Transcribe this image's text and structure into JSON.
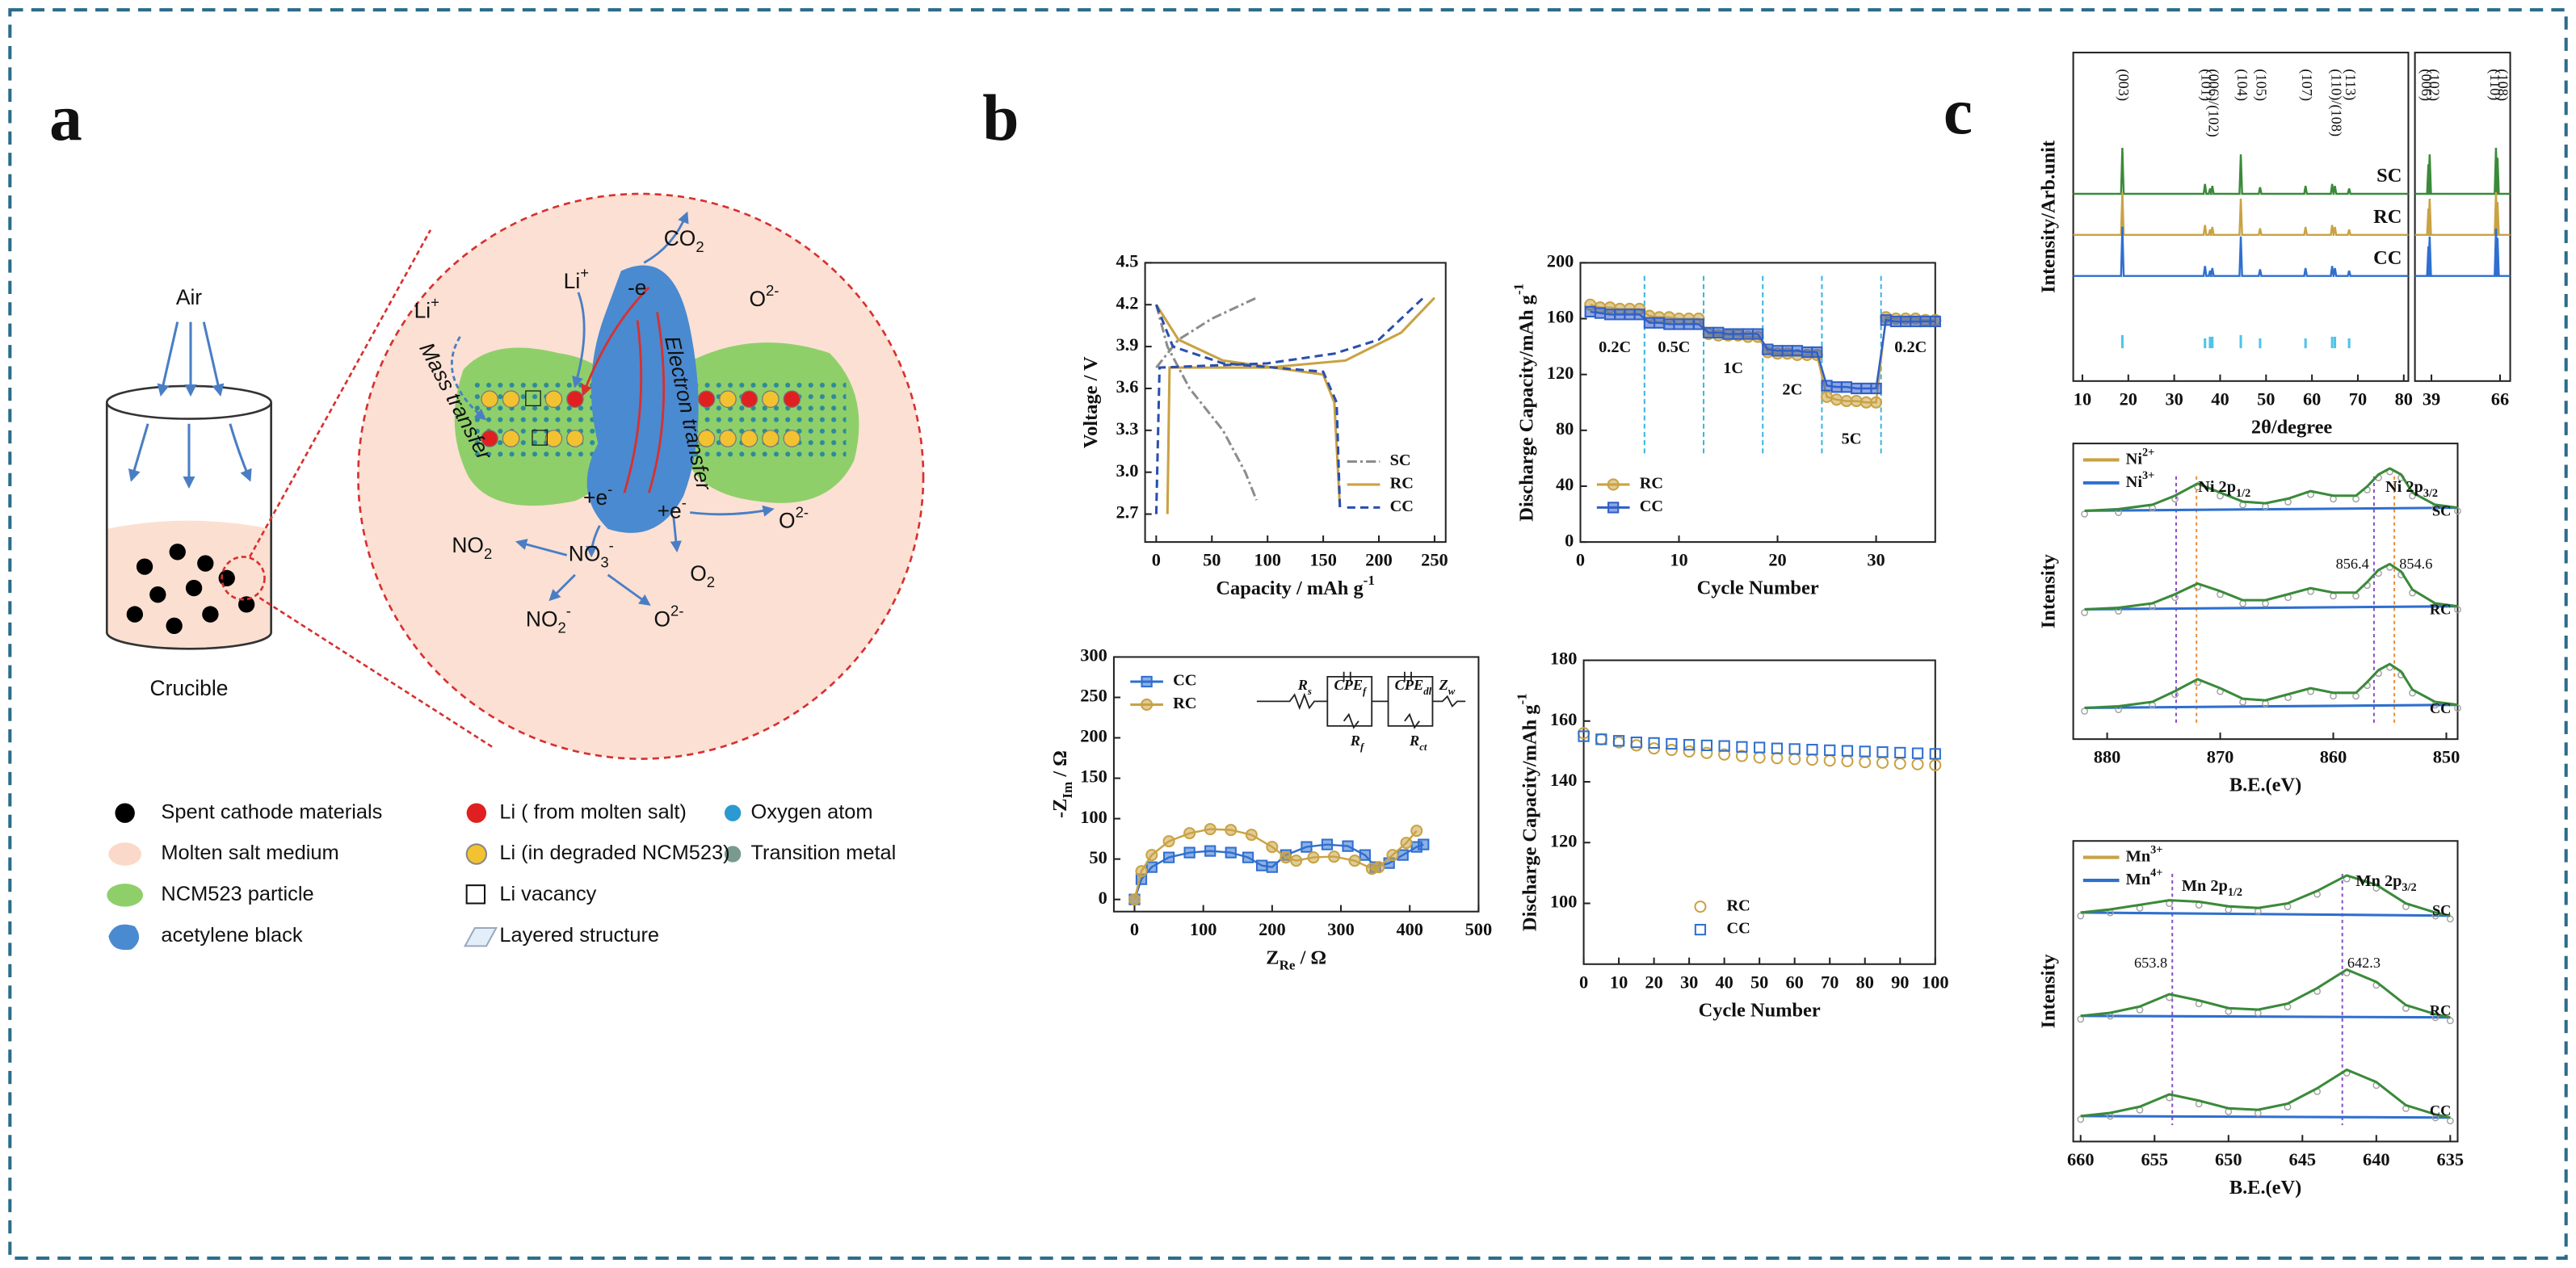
{
  "panels": {
    "a": "a",
    "b": "b",
    "c": "c"
  },
  "diagram": {
    "air": "Air",
    "crucible": "Crucible",
    "li_plus_1": {
      "text": "Li",
      "sup": "+"
    },
    "li_plus_2": {
      "text": "Li",
      "sup": "+"
    },
    "co2": {
      "text": "CO",
      "sub": "2"
    },
    "o2m_1": {
      "text": "O",
      "sup": "2-"
    },
    "mass_transfer": "Mass transfer",
    "electron_transfer": "Electron transfer",
    "minus_e": "-e",
    "plus_e_1": {
      "text": "+e",
      "sup": "-"
    },
    "plus_e_2": {
      "text": "+e",
      "sup": "-"
    },
    "no2": {
      "text": "NO",
      "sub": "2"
    },
    "no3": {
      "text": "NO",
      "sub": "3",
      "sup": "-"
    },
    "no2m": {
      "text": "NO",
      "sub": "2",
      "sup": "-"
    },
    "o2m_2": {
      "text": "O",
      "sup": "2-"
    },
    "o2": {
      "text": "O",
      "sub": "2"
    },
    "o2m_3": {
      "text": "O",
      "sup": "2-"
    }
  },
  "legend_a": [
    "Spent cathode materials",
    "Molten salt medium",
    "NCM523 particle",
    "acetylene black",
    "Li ( from molten salt)",
    "Li (in degraded NCM523)",
    "Li vacancy",
    "Layered structure",
    "Oxygen atom",
    "Transition metal"
  ],
  "chart_data": [
    {
      "type": "line",
      "xlabel": {
        "text": "Capacity / mAh g",
        "sup": "-1"
      },
      "ylabel": "Voltage / V",
      "xlim": [
        -10,
        260
      ],
      "xticks": [
        0,
        50,
        100,
        150,
        200,
        250
      ],
      "ylim": [
        2.5,
        4.5
      ],
      "yticks": [
        2.7,
        {
          "value": 3,
          "label": "3.0"
        },
        3.3,
        3.6,
        3.9,
        4.2,
        4.5
      ],
      "legend": "lower right",
      "series": [
        {
          "name": "SC",
          "color": "#8c8c8c",
          "dash": "dashdot",
          "x": [
            0,
            20,
            50,
            90,
            null,
            0,
            10,
            30,
            60,
            80,
            90
          ],
          "values": [
            3.75,
            3.95,
            4.1,
            4.25,
            null,
            4.2,
            3.9,
            3.6,
            3.3,
            3.0,
            2.8
          ]
        },
        {
          "name": "RC",
          "color": "#c9a243",
          "dash": "solid",
          "x": [
            10,
            12,
            100,
            170,
            220,
            250,
            null,
            0,
            20,
            60,
            150,
            160,
            165
          ],
          "values": [
            2.7,
            3.75,
            3.75,
            3.8,
            4.0,
            4.25,
            null,
            4.2,
            3.95,
            3.8,
            3.7,
            3.5,
            2.75
          ]
        },
        {
          "name": "CC",
          "color": "#2a4fb0",
          "dash": "dashed",
          "x": [
            0,
            3,
            100,
            160,
            200,
            240,
            null,
            0,
            15,
            60,
            150,
            162,
            165
          ],
          "values": [
            2.7,
            3.75,
            3.78,
            3.85,
            3.95,
            4.25,
            null,
            4.2,
            3.9,
            3.78,
            3.72,
            3.5,
            2.75
          ]
        }
      ]
    },
    {
      "type": "scatter",
      "xlabel": "Cycle Number",
      "ylabel": {
        "text": "Discharge Capacity/mAh g",
        "sup": "-1"
      },
      "xlim": [
        0,
        36
      ],
      "xticks": [
        0,
        10,
        20,
        30
      ],
      "ylim": [
        0,
        200
      ],
      "yticks": [
        0,
        40,
        80,
        120,
        160,
        200
      ],
      "legend": "lower left",
      "connect": true,
      "dividers": [
        6.5,
        12.5,
        18.5,
        24.5,
        30.5
      ],
      "divider_color": "#3bb5e0",
      "annotations": [
        "0.2C",
        "0.5C",
        "1C",
        "2C",
        "5C",
        "0.2C"
      ],
      "x": [
        1,
        2,
        3,
        4,
        5,
        6,
        7,
        8,
        9,
        10,
        11,
        12,
        13,
        14,
        15,
        16,
        17,
        18,
        19,
        20,
        21,
        22,
        23,
        24,
        25,
        26,
        27,
        28,
        29,
        30,
        31,
        32,
        33,
        34,
        35,
        36
      ],
      "series": [
        {
          "name": "RC",
          "color": "#c9a243",
          "marker": "circle",
          "values": [
            170,
            168,
            168,
            167,
            167,
            167,
            162,
            161,
            161,
            160,
            160,
            160,
            149,
            148,
            148,
            148,
            147,
            147,
            136,
            135,
            135,
            134,
            134,
            134,
            104,
            102,
            101,
            101,
            100,
            100,
            161,
            160,
            160,
            160,
            159,
            159
          ]
        },
        {
          "name": "CC",
          "color": "#2f5fc8",
          "marker": "square",
          "values": [
            165,
            164,
            163,
            163,
            163,
            163,
            157,
            157,
            156,
            156,
            156,
            156,
            150,
            150,
            149,
            149,
            149,
            149,
            138,
            137,
            137,
            137,
            136,
            136,
            112,
            111,
            111,
            110,
            110,
            110,
            159,
            158,
            158,
            158,
            158,
            158
          ]
        }
      ]
    },
    {
      "type": "scatter",
      "xlabel": {
        "text": "Z",
        "sub": "Re",
        "rest": " / Ω"
      },
      "ylabel": {
        "text": "-Z",
        "sub": "Im",
        "rest": " / Ω"
      },
      "xlim": [
        -30,
        500
      ],
      "xticks": [
        0,
        100,
        200,
        300,
        400,
        500
      ],
      "ylim": [
        -15,
        300
      ],
      "yticks": [
        0,
        50,
        100,
        150,
        200,
        250,
        300
      ],
      "legend": "upper left",
      "connect": true,
      "circuit": [
        {
          "text": "R",
          "sub": "s"
        },
        {
          "text": "CPE",
          "sub": "f"
        },
        {
          "text": "CPE",
          "sub": "dl"
        },
        {
          "text": "Z",
          "sub": "w"
        },
        {
          "text": "R",
          "sub": "f"
        },
        {
          "text": "R",
          "sub": "ct"
        }
      ],
      "series": [
        {
          "name": "CC",
          "color": "#2f6fcf",
          "marker": "square",
          "x": [
            0,
            10,
            25,
            50,
            80,
            110,
            140,
            165,
            185,
            200,
            220,
            250,
            280,
            310,
            335,
            350,
            370,
            390,
            410,
            420
          ],
          "values": [
            0,
            25,
            40,
            52,
            58,
            60,
            58,
            52,
            42,
            40,
            55,
            65,
            68,
            66,
            55,
            40,
            45,
            55,
            65,
            68
          ]
        },
        {
          "name": "RC",
          "color": "#c9a243",
          "marker": "circle",
          "x": [
            0,
            10,
            25,
            50,
            80,
            110,
            140,
            170,
            200,
            220,
            235,
            260,
            290,
            320,
            345,
            355,
            375,
            395,
            410
          ],
          "values": [
            0,
            35,
            55,
            72,
            82,
            87,
            86,
            80,
            65,
            52,
            48,
            52,
            53,
            48,
            38,
            40,
            55,
            70,
            85
          ]
        }
      ]
    },
    {
      "type": "scatter",
      "xlabel": "Cycle Number",
      "ylabel": {
        "text": "Discharge Capacity/mAh g",
        "sup": "-1"
      },
      "xlim": [
        0,
        100
      ],
      "xticks": [
        0,
        10,
        20,
        30,
        40,
        50,
        60,
        70,
        80,
        90,
        100
      ],
      "ylim": [
        80,
        180
      ],
      "yticks": [
        100,
        120,
        140,
        160,
        180
      ],
      "legend": "lower center",
      "connect": false,
      "marker_fill": "none",
      "x": [
        0,
        5,
        10,
        15,
        20,
        25,
        30,
        35,
        40,
        45,
        50,
        55,
        60,
        65,
        70,
        75,
        80,
        85,
        90,
        95,
        100
      ],
      "series": [
        {
          "name": "RC",
          "color": "#c9a243",
          "marker": "circle",
          "values": [
            156,
            154,
            153,
            152,
            151,
            150.5,
            150,
            149.5,
            149,
            148.5,
            148,
            147.8,
            147.5,
            147.3,
            147,
            146.8,
            146.5,
            146.3,
            146,
            145.8,
            145.5
          ]
        },
        {
          "name": "CC",
          "color": "#2f6fcf",
          "marker": "square",
          "values": [
            155,
            154,
            153.5,
            153,
            152.8,
            152.5,
            152.2,
            152,
            151.8,
            151.5,
            151.3,
            151,
            150.8,
            150.6,
            150.4,
            150.2,
            150,
            149.8,
            149.6,
            149.4,
            149.2
          ]
        }
      ]
    },
    {
      "type": "xrd",
      "xlabel": "2θ/degree",
      "ylabel": "Intensity/Arb.unit",
      "xlim": [
        8,
        81
      ],
      "xticks": [
        10,
        20,
        30,
        40,
        50,
        60,
        70,
        80
      ],
      "x": [
        18.7,
        36.7,
        37.8,
        38.3,
        44.5,
        48.7,
        58.6,
        64.4,
        65.0,
        68.1
      ],
      "series": [
        {
          "name": "SC",
          "color": "#3a8a3a",
          "values": [
            70,
            15,
            8,
            12,
            60,
            10,
            12,
            15,
            12,
            8
          ]
        },
        {
          "name": "RC",
          "color": "#c9a243",
          "values": [
            65,
            15,
            8,
            12,
            55,
            10,
            12,
            15,
            12,
            8
          ]
        },
        {
          "name": "CC",
          "color": "#2f6fcf",
          "values": [
            75,
            15,
            8,
            12,
            60,
            10,
            12,
            15,
            12,
            8
          ]
        }
      ],
      "reference": {
        "color": "#4fc3e8",
        "values": [
          40,
          30,
          35,
          35,
          40,
          30,
          30,
          35,
          35,
          30
        ]
      },
      "peak_labels": [
        "(003)",
        "(101)",
        "(006)/(102)",
        "(104)",
        "(105)",
        "(107)",
        "(110)/(108)",
        "(113)"
      ],
      "peak_label_x": [
        18.7,
        36.7,
        38.3,
        44.5,
        48.7,
        58.6,
        65.0,
        68.1
      ]
    },
    {
      "type": "xrd",
      "xlim": [
        32.5,
        70
      ],
      "xticks": [
        39,
        66
      ],
      "x": [
        37.8,
        38.3,
        64.4,
        65.0
      ],
      "series": [
        {
          "color": "#3a8a3a",
          "values": [
            45,
            60,
            70,
            55
          ]
        },
        {
          "color": "#c9a243",
          "values": [
            40,
            55,
            65,
            50
          ]
        },
        {
          "color": "#2f6fcf",
          "values": [
            45,
            60,
            72,
            58
          ]
        }
      ],
      "peak_labels": [
        "(006)",
        "(102)",
        "(110)",
        "(108)"
      ],
      "peak_label_x": [
        36.5,
        39.5,
        63.5,
        66.5
      ]
    },
    {
      "type": "xps",
      "xlabel": "B.E.(eV)",
      "ylabel": "Intensity",
      "xlim": [
        883,
        849
      ],
      "xticks": [
        880,
        870,
        860,
        850
      ],
      "ylim": [
        0,
        50
      ],
      "raw_color": "#a0a0a0",
      "fit_color": "#3a8a3a",
      "baseline_color": "#2f6fcf",
      "components": [
        {
          "name": {
            "text": "Ni",
            "sup": "2+"
          },
          "color": "#c9a243"
        },
        {
          "name": {
            "text": "Ni",
            "sup": "3+"
          },
          "color": "#2f6fcf"
        }
      ],
      "peak_labels": [
        {
          "text": "Ni 2p",
          "sub": "1/2"
        },
        {
          "text": "Ni 2p",
          "sub": "3/2"
        }
      ],
      "markers": [
        856.4,
        854.6
      ],
      "marker_colors": [
        "#8a4fc8",
        "#e8903a"
      ],
      "guides": [
        873.9,
        872.1
      ],
      "x": [
        882,
        879,
        876,
        874,
        872,
        870,
        868,
        866,
        864,
        862,
        860,
        858,
        857,
        856,
        855,
        854,
        853,
        851,
        849
      ],
      "series": [
        {
          "name": "SC",
          "values": [
            12,
            13,
            16,
            22,
            30,
            24,
            18,
            17,
            20,
            25,
            22,
            22,
            28,
            36,
            40,
            36,
            24,
            16,
            14
          ]
        },
        {
          "name": "RC",
          "values": [
            12,
            13,
            16,
            22,
            29,
            24,
            18,
            18,
            22,
            26,
            23,
            23,
            30,
            38,
            42,
            37,
            25,
            16,
            14
          ]
        },
        {
          "name": "CC",
          "values": [
            12,
            13,
            16,
            23,
            31,
            25,
            18,
            17,
            21,
            25,
            22,
            22,
            29,
            37,
            41,
            36,
            24,
            16,
            14
          ]
        }
      ]
    },
    {
      "type": "xps",
      "xlabel": "B.E.(eV)",
      "ylabel": "Intensity",
      "xlim": [
        660.5,
        634.5
      ],
      "xticks": [
        660,
        655,
        650,
        645,
        640,
        635
      ],
      "ylim": [
        0,
        50
      ],
      "raw_color": "#a0a0a0",
      "fit_color": "#3a8a3a",
      "baseline_color": "#2f6fcf",
      "components": [
        {
          "name": {
            "text": "Mn",
            "sup": "3+"
          },
          "color": "#c9a243"
        },
        {
          "name": {
            "text": "Mn",
            "sup": "4+"
          },
          "color": "#2f6fcf"
        }
      ],
      "peak_labels": [
        {
          "text": "Mn 2p",
          "sub": "1/2"
        },
        {
          "text": "Mn 2p",
          "sub": "3/2"
        }
      ],
      "markers": [
        653.8,
        642.3
      ],
      "marker_colors": [
        "#8a4fc8",
        "#8a4fc8"
      ],
      "x": [
        660,
        658,
        656,
        654,
        652,
        650,
        648,
        646,
        644,
        642,
        640,
        638,
        636,
        635
      ],
      "series": [
        {
          "name": "SC",
          "values": [
            10,
            12,
            15,
            18,
            17,
            14,
            13,
            16,
            24,
            34,
            28,
            16,
            10,
            8
          ]
        },
        {
          "name": "RC",
          "values": [
            8,
            10,
            14,
            22,
            18,
            13,
            12,
            16,
            26,
            38,
            30,
            15,
            9,
            7
          ]
        },
        {
          "name": "CC",
          "values": [
            8,
            10,
            14,
            22,
            18,
            13,
            12,
            16,
            26,
            38,
            30,
            15,
            9,
            7
          ]
        }
      ]
    }
  ]
}
